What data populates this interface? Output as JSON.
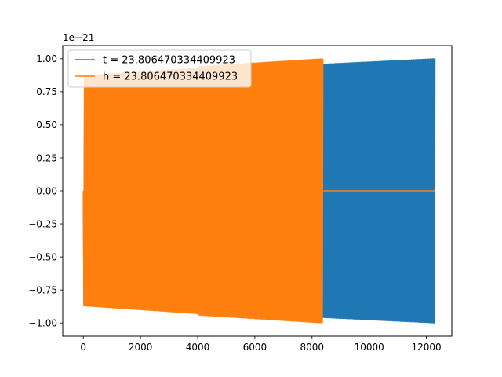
{
  "chart_data": {
    "type": "line",
    "title": "",
    "xlabel": "",
    "ylabel": "",
    "y_offset_text": "1e−21",
    "xlim": [
      -720,
      12890
    ],
    "ylim": [
      -1.1,
      1.1
    ],
    "x_ticks": [
      0,
      2000,
      4000,
      6000,
      8000,
      10000,
      12000
    ],
    "x_tick_labels": [
      "0",
      "2000",
      "4000",
      "6000",
      "8000",
      "10000",
      "12000"
    ],
    "y_ticks": [
      1.0,
      0.75,
      0.5,
      0.25,
      0.0,
      -0.25,
      -0.5,
      -0.75,
      -1.0
    ],
    "y_tick_labels": [
      "1.00",
      "0.75",
      "0.50",
      "0.25",
      "0.00",
      "−0.25",
      "−0.50",
      "−0.75",
      "−1.00"
    ],
    "grid": false,
    "legend_position": "top-left",
    "series": [
      {
        "name": "t = 23.806470334409923",
        "color": "#1f77b4",
        "segments": [
          {
            "x_start": 0,
            "x_end": 12300,
            "cycles": 300,
            "amplitude_start": 0.87,
            "amplitude_end": 1.0
          }
        ]
      },
      {
        "name": "h = 23.806470334409923",
        "color": "#ff7f0e",
        "segments": [
          {
            "x_start": 0,
            "x_end": 4000,
            "cycles": 96,
            "amplitude_start": 0.87,
            "amplitude_end": 0.93
          },
          {
            "x_start": 4000,
            "x_end": 8380,
            "cycles": 105,
            "amplitude_start": 0.94,
            "amplitude_end": 1.0
          }
        ],
        "flat_segments": [
          {
            "x_start": 0,
            "x_end": 4000,
            "y": 0.0
          },
          {
            "x_start": 8380,
            "x_end": 12300,
            "y": 0.0
          }
        ]
      }
    ]
  }
}
